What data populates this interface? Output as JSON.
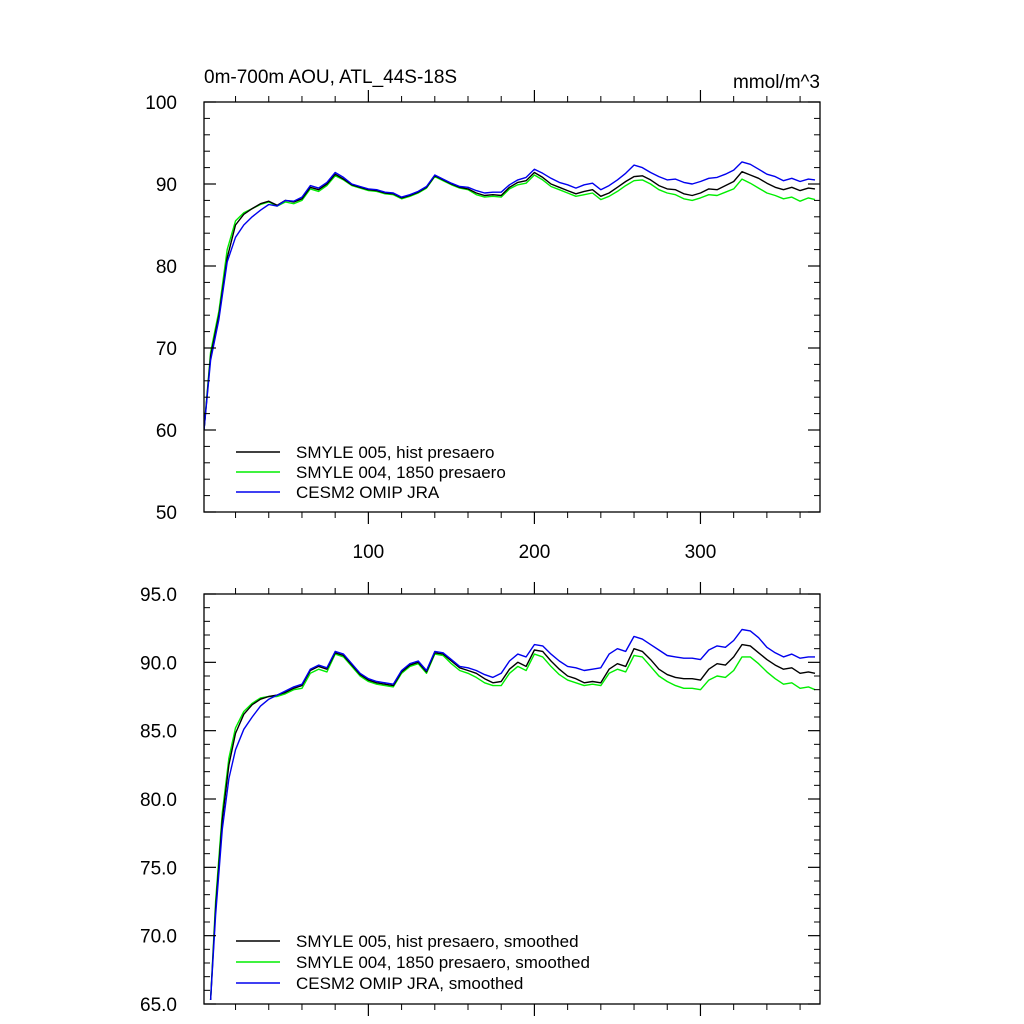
{
  "chart_data": [
    {
      "type": "line",
      "title": "0m-700m AOU, ATL_44S-18S",
      "units": "mmol/m^3",
      "xlabel": "",
      "ylabel": "",
      "xlim": [
        1,
        372
      ],
      "ylim": [
        50,
        100
      ],
      "x_ticks": [
        100,
        200,
        300
      ],
      "x_tick_labels": [
        "100",
        "200",
        "300"
      ],
      "y_ticks": [
        50,
        60,
        70,
        80,
        90,
        100
      ],
      "y_tick_labels": [
        "50",
        "60",
        "70",
        "80",
        "90",
        "100"
      ],
      "legend_position": "bottom-left",
      "series": [
        {
          "name": "SMYLE 005, hist presaero",
          "color": "#000000",
          "x": [
            1,
            5,
            10,
            15,
            20,
            25,
            30,
            35,
            40,
            45,
            50,
            55,
            60,
            65,
            70,
            75,
            80,
            85,
            90,
            95,
            100,
            105,
            110,
            115,
            120,
            125,
            130,
            135,
            140,
            145,
            150,
            155,
            160,
            165,
            170,
            175,
            180,
            185,
            190,
            195,
            200,
            205,
            210,
            215,
            220,
            225,
            230,
            235,
            240,
            245,
            250,
            255,
            260,
            265,
            270,
            275,
            280,
            285,
            290,
            295,
            300,
            305,
            310,
            315,
            320,
            325,
            330,
            335,
            340,
            345,
            350,
            355,
            360,
            365,
            369
          ],
          "values": [
            60,
            69,
            74,
            81,
            85,
            86.3,
            87,
            87.6,
            87.9,
            87.4,
            88,
            87.8,
            88.2,
            89.6,
            89.3,
            90,
            91.2,
            90.6,
            89.9,
            89.6,
            89.3,
            89.2,
            88.9,
            88.8,
            88.3,
            88.6,
            89,
            89.6,
            91,
            90.5,
            90,
            89.6,
            89.4,
            88.9,
            88.6,
            88.7,
            88.6,
            89.6,
            90.2,
            90.4,
            91.4,
            90.8,
            90,
            89.6,
            89.2,
            88.8,
            89.1,
            89.3,
            88.5,
            88.9,
            89.6,
            90.3,
            90.9,
            91,
            90.5,
            89.8,
            89.4,
            89.3,
            88.8,
            88.6,
            88.9,
            89.4,
            89.3,
            89.8,
            90.3,
            91.5,
            91.1,
            90.7,
            90.1,
            89.6,
            89.3,
            89.6,
            89.2,
            89.5,
            89.4
          ]
        },
        {
          "name": "SMYLE 004, 1850 presaero",
          "color": "#00ee00",
          "x": [
            1,
            5,
            10,
            15,
            20,
            25,
            30,
            35,
            40,
            45,
            50,
            55,
            60,
            65,
            70,
            75,
            80,
            85,
            90,
            95,
            100,
            105,
            110,
            115,
            120,
            125,
            130,
            135,
            140,
            145,
            150,
            155,
            160,
            165,
            170,
            175,
            180,
            185,
            190,
            195,
            200,
            205,
            210,
            215,
            220,
            225,
            230,
            235,
            240,
            245,
            250,
            255,
            260,
            265,
            270,
            275,
            280,
            285,
            290,
            295,
            300,
            305,
            310,
            315,
            320,
            325,
            330,
            335,
            340,
            345,
            350,
            355,
            360,
            365,
            369
          ],
          "values": [
            60,
            69.5,
            74.5,
            82,
            85.5,
            86.5,
            87,
            87.5,
            87.8,
            87.3,
            87.8,
            87.6,
            88,
            89.4,
            89.1,
            89.8,
            91,
            90.5,
            89.8,
            89.5,
            89.2,
            89.1,
            88.8,
            88.7,
            88.2,
            88.5,
            88.9,
            89.5,
            90.9,
            90.4,
            89.9,
            89.5,
            89.3,
            88.7,
            88.4,
            88.5,
            88.4,
            89.4,
            89.9,
            90.1,
            91.1,
            90.5,
            89.7,
            89.3,
            88.9,
            88.5,
            88.7,
            88.9,
            88.1,
            88.5,
            89.1,
            89.8,
            90.4,
            90.5,
            90,
            89.3,
            88.9,
            88.7,
            88.2,
            88,
            88.3,
            88.7,
            88.6,
            89,
            89.4,
            90.6,
            90.1,
            89.5,
            88.9,
            88.6,
            88.2,
            88.4,
            87.9,
            88.3,
            88.1
          ]
        },
        {
          "name": "CESM2 OMIP JRA",
          "color": "#0000ee",
          "x": [
            1,
            5,
            10,
            15,
            20,
            25,
            30,
            35,
            40,
            45,
            50,
            55,
            60,
            65,
            70,
            75,
            80,
            85,
            90,
            95,
            100,
            105,
            110,
            115,
            120,
            125,
            130,
            135,
            140,
            145,
            150,
            155,
            160,
            165,
            170,
            175,
            180,
            185,
            190,
            195,
            200,
            205,
            210,
            215,
            220,
            225,
            230,
            235,
            240,
            245,
            250,
            255,
            260,
            265,
            270,
            275,
            280,
            285,
            290,
            295,
            300,
            305,
            310,
            315,
            320,
            325,
            330,
            335,
            340,
            345,
            350,
            355,
            360,
            365,
            369
          ],
          "values": [
            60,
            68.5,
            73.5,
            80.5,
            83.5,
            85,
            86,
            86.8,
            87.5,
            87.3,
            88,
            87.9,
            88.4,
            89.8,
            89.5,
            90.2,
            91.4,
            90.8,
            90,
            89.7,
            89.4,
            89.3,
            89,
            88.9,
            88.4,
            88.7,
            89.1,
            89.7,
            91.1,
            90.6,
            90.1,
            89.7,
            89.6,
            89.2,
            88.9,
            89,
            89,
            89.9,
            90.5,
            90.8,
            91.8,
            91.3,
            90.7,
            90.2,
            89.9,
            89.5,
            89.9,
            90.1,
            89.3,
            89.8,
            90.5,
            91.3,
            92.3,
            92,
            91.4,
            90.9,
            90.5,
            90.6,
            90.2,
            90,
            90.3,
            90.7,
            90.8,
            91.2,
            91.7,
            92.7,
            92.4,
            91.8,
            91.2,
            90.9,
            90.4,
            90.7,
            90.3,
            90.6,
            90.5
          ]
        }
      ]
    },
    {
      "type": "line",
      "title": "",
      "xlabel": "",
      "ylabel": "",
      "xlim": [
        1,
        372
      ],
      "ylim": [
        65,
        95
      ],
      "x_ticks": [
        100,
        200,
        300
      ],
      "x_tick_labels": [
        "",
        "",
        ""
      ],
      "y_ticks": [
        65,
        70,
        75,
        80,
        85,
        90,
        95
      ],
      "y_tick_labels": [
        "65.0",
        "70.0",
        "75.0",
        "80.0",
        "85.0",
        "90.0",
        "95.0"
      ],
      "legend_position": "bottom-left",
      "series": [
        {
          "name": "SMYLE 005, hist presaero, smoothed",
          "color": "#000000",
          "x": [
            5,
            8,
            12,
            16,
            20,
            25,
            30,
            35,
            40,
            45,
            50,
            55,
            60,
            65,
            70,
            75,
            80,
            85,
            90,
            95,
            100,
            105,
            110,
            115,
            120,
            125,
            130,
            135,
            140,
            145,
            150,
            155,
            160,
            165,
            170,
            175,
            180,
            185,
            190,
            195,
            200,
            205,
            210,
            215,
            220,
            225,
            230,
            235,
            240,
            245,
            250,
            255,
            260,
            265,
            270,
            275,
            280,
            285,
            290,
            295,
            300,
            305,
            310,
            315,
            320,
            325,
            330,
            335,
            340,
            345,
            350,
            355,
            360,
            365,
            369
          ],
          "values": [
            65.3,
            72,
            78.5,
            82.5,
            84.8,
            86.2,
            86.9,
            87.3,
            87.5,
            87.6,
            87.8,
            88.1,
            88.3,
            89.4,
            89.7,
            89.5,
            90.7,
            90.5,
            89.8,
            89.1,
            88.7,
            88.5,
            88.4,
            88.3,
            89.3,
            89.8,
            90,
            89.3,
            90.7,
            90.6,
            90.1,
            89.6,
            89.4,
            89.2,
            88.8,
            88.5,
            88.6,
            89.5,
            90,
            89.7,
            90.9,
            90.8,
            90.1,
            89.5,
            89,
            88.8,
            88.5,
            88.6,
            88.5,
            89.5,
            89.9,
            89.7,
            91,
            90.8,
            90.2,
            89.5,
            89.1,
            88.9,
            88.8,
            88.8,
            88.7,
            89.5,
            89.9,
            89.8,
            90.4,
            91.3,
            91.2,
            90.7,
            90.2,
            89.8,
            89.5,
            89.6,
            89.2,
            89.3,
            89.2
          ]
        },
        {
          "name": "SMYLE 004, 1850 presaero, smoothed",
          "color": "#00ee00",
          "x": [
            5,
            8,
            12,
            16,
            20,
            25,
            30,
            35,
            40,
            45,
            50,
            55,
            60,
            65,
            70,
            75,
            80,
            85,
            90,
            95,
            100,
            105,
            110,
            115,
            120,
            125,
            130,
            135,
            140,
            145,
            150,
            155,
            160,
            165,
            170,
            175,
            180,
            185,
            190,
            195,
            200,
            205,
            210,
            215,
            220,
            225,
            230,
            235,
            240,
            245,
            250,
            255,
            260,
            265,
            270,
            275,
            280,
            285,
            290,
            295,
            300,
            305,
            310,
            315,
            320,
            325,
            330,
            335,
            340,
            345,
            350,
            355,
            360,
            365,
            369
          ],
          "values": [
            65.3,
            72.5,
            79,
            83,
            85.2,
            86.4,
            87,
            87.4,
            87.5,
            87.5,
            87.7,
            88,
            88.1,
            89.2,
            89.5,
            89.3,
            90.6,
            90.4,
            89.7,
            89,
            88.6,
            88.4,
            88.3,
            88.2,
            89.2,
            89.7,
            89.9,
            89.2,
            90.6,
            90.5,
            89.9,
            89.4,
            89.2,
            88.9,
            88.5,
            88.3,
            88.3,
            89.2,
            89.7,
            89.4,
            90.6,
            90.4,
            89.7,
            89.1,
            88.7,
            88.5,
            88.3,
            88.4,
            88.3,
            89.2,
            89.5,
            89.3,
            90.5,
            90.4,
            89.7,
            89,
            88.6,
            88.3,
            88.1,
            88.1,
            88,
            88.7,
            89,
            88.9,
            89.4,
            90.4,
            90.4,
            89.9,
            89.3,
            88.8,
            88.4,
            88.5,
            88.1,
            88.2,
            88
          ]
        },
        {
          "name": "CESM2 OMIP JRA, smoothed",
          "color": "#0000ee",
          "x": [
            5,
            8,
            12,
            16,
            20,
            25,
            30,
            35,
            40,
            45,
            50,
            55,
            60,
            65,
            70,
            75,
            80,
            85,
            90,
            95,
            100,
            105,
            110,
            115,
            120,
            125,
            130,
            135,
            140,
            145,
            150,
            155,
            160,
            165,
            170,
            175,
            180,
            185,
            190,
            195,
            200,
            205,
            210,
            215,
            220,
            225,
            230,
            235,
            240,
            245,
            250,
            255,
            260,
            265,
            270,
            275,
            280,
            285,
            290,
            295,
            300,
            305,
            310,
            315,
            320,
            325,
            330,
            335,
            340,
            345,
            350,
            355,
            360,
            365,
            369
          ],
          "values": [
            65.3,
            71.5,
            77.8,
            81.5,
            83.6,
            85.1,
            86,
            86.8,
            87.3,
            87.6,
            87.9,
            88.2,
            88.4,
            89.5,
            89.8,
            89.6,
            90.8,
            90.6,
            89.9,
            89.2,
            88.8,
            88.6,
            88.5,
            88.4,
            89.4,
            89.9,
            90.1,
            89.4,
            90.8,
            90.7,
            90.2,
            89.7,
            89.6,
            89.4,
            89.1,
            88.9,
            89.2,
            90.1,
            90.6,
            90.4,
            91.3,
            91.2,
            90.6,
            90.1,
            89.7,
            89.6,
            89.4,
            89.5,
            89.6,
            90.6,
            91,
            90.8,
            91.9,
            91.7,
            91.3,
            90.9,
            90.5,
            90.4,
            90.3,
            90.3,
            90.2,
            90.9,
            91.2,
            91.1,
            91.6,
            92.4,
            92.3,
            91.8,
            91.1,
            90.7,
            90.4,
            90.6,
            90.3,
            90.4,
            90.4
          ]
        }
      ]
    }
  ]
}
